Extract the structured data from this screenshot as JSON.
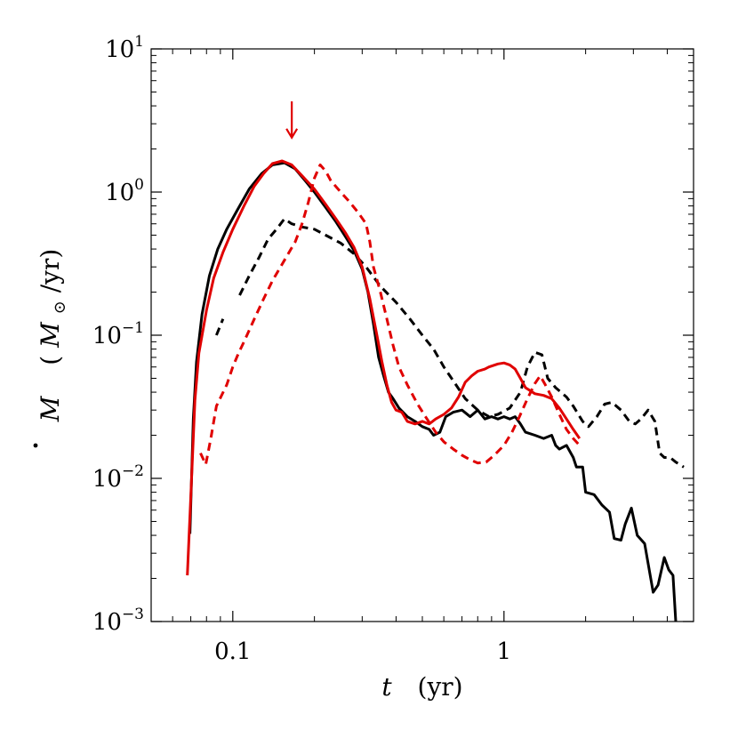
{
  "chart_data": {
    "type": "line",
    "title": "",
    "xlabel": {
      "symbol": "t",
      "unit": "(yr)"
    },
    "ylabel": {
      "symbol": "M",
      "unit_open": "(",
      "unit_sym": "M",
      "unit_sub": "⊙",
      "unit_rest": "/yr)"
    },
    "xscale": "log",
    "yscale": "log",
    "xlim": [
      0.05,
      5.0
    ],
    "ylim": [
      0.001,
      10
    ],
    "grid": false,
    "legend": "none",
    "x_ticks": [
      {
        "value": 0.1,
        "label": "0.1"
      },
      {
        "value": 1,
        "label": "1"
      }
    ],
    "y_ticks": [
      {
        "value": 0.001,
        "base": "10",
        "exp": "−3"
      },
      {
        "value": 0.01,
        "base": "10",
        "exp": "−2"
      },
      {
        "value": 0.1,
        "base": "10",
        "exp": "−1"
      },
      {
        "value": 1,
        "base": "10",
        "exp": "0"
      },
      {
        "value": 10,
        "base": "10",
        "exp": "1"
      }
    ],
    "annotation": {
      "type": "arrow",
      "x": 0.165,
      "y_top": 4.3,
      "y_bottom": 2.4,
      "color": "#e00000"
    },
    "series": [
      {
        "color": "#000000",
        "dash": "solid",
        "points": [
          [
            0.0695,
            0.0041
          ],
          [
            0.0715,
            0.026
          ],
          [
            0.0735,
            0.065
          ],
          [
            0.077,
            0.14
          ],
          [
            0.082,
            0.26
          ],
          [
            0.088,
            0.4
          ],
          [
            0.095,
            0.55
          ],
          [
            0.104,
            0.75
          ],
          [
            0.115,
            1.05
          ],
          [
            0.128,
            1.35
          ],
          [
            0.14,
            1.55
          ],
          [
            0.155,
            1.6
          ],
          [
            0.17,
            1.45
          ],
          [
            0.185,
            1.2
          ],
          [
            0.2,
            1.0
          ],
          [
            0.22,
            0.78
          ],
          [
            0.24,
            0.62
          ],
          [
            0.26,
            0.49
          ],
          [
            0.28,
            0.39
          ],
          [
            0.3,
            0.29
          ],
          [
            0.315,
            0.2
          ],
          [
            0.33,
            0.12
          ],
          [
            0.345,
            0.07
          ],
          [
            0.36,
            0.052
          ],
          [
            0.375,
            0.04
          ],
          [
            0.39,
            0.036
          ],
          [
            0.41,
            0.031
          ],
          [
            0.44,
            0.027
          ],
          [
            0.47,
            0.025
          ],
          [
            0.5,
            0.023
          ],
          [
            0.53,
            0.022
          ],
          [
            0.55,
            0.02
          ],
          [
            0.58,
            0.021
          ],
          [
            0.61,
            0.027
          ],
          [
            0.65,
            0.029
          ],
          [
            0.7,
            0.03
          ],
          [
            0.75,
            0.027
          ],
          [
            0.8,
            0.03
          ],
          [
            0.85,
            0.026
          ],
          [
            0.9,
            0.027
          ],
          [
            0.95,
            0.026
          ],
          [
            1.0,
            0.027
          ],
          [
            1.05,
            0.026
          ],
          [
            1.1,
            0.027
          ],
          [
            1.15,
            0.024
          ],
          [
            1.2,
            0.021
          ],
          [
            1.3,
            0.02
          ],
          [
            1.4,
            0.019
          ],
          [
            1.5,
            0.02
          ],
          [
            1.55,
            0.017
          ],
          [
            1.6,
            0.016
          ],
          [
            1.7,
            0.017
          ],
          [
            1.8,
            0.014
          ],
          [
            1.85,
            0.012
          ],
          [
            1.95,
            0.012
          ],
          [
            2.0,
            0.008
          ],
          [
            2.15,
            0.0077
          ],
          [
            2.3,
            0.0065
          ],
          [
            2.45,
            0.0058
          ],
          [
            2.55,
            0.0038
          ],
          [
            2.7,
            0.0037
          ],
          [
            2.8,
            0.0048
          ],
          [
            2.95,
            0.0062
          ],
          [
            3.1,
            0.004
          ],
          [
            3.3,
            0.0035
          ],
          [
            3.55,
            0.0016
          ],
          [
            3.7,
            0.0018
          ],
          [
            3.9,
            0.0028
          ],
          [
            4.05,
            0.0023
          ],
          [
            4.2,
            0.0021
          ],
          [
            4.3,
            0.001
          ]
        ]
      },
      {
        "color": "#000000",
        "dash": "dashed",
        "points": [
          [
            0.087,
            0.1
          ],
          [
            0.092,
            0.13
          ],
          [
            null,
            null
          ],
          [
            0.106,
            0.19
          ],
          [
            0.115,
            0.26
          ],
          [
            0.125,
            0.35
          ],
          [
            0.135,
            0.47
          ],
          [
            0.145,
            0.55
          ],
          [
            0.155,
            0.65
          ],
          [
            0.165,
            0.6
          ],
          [
            0.18,
            0.57
          ],
          [
            0.2,
            0.55
          ],
          [
            0.22,
            0.5
          ],
          [
            0.25,
            0.44
          ],
          [
            0.28,
            0.37
          ],
          [
            0.31,
            0.3
          ],
          [
            0.35,
            0.22
          ],
          [
            0.4,
            0.17
          ],
          [
            0.45,
            0.13
          ],
          [
            0.5,
            0.1
          ],
          [
            0.55,
            0.08
          ],
          [
            0.6,
            0.06
          ],
          [
            0.66,
            0.046
          ],
          [
            0.72,
            0.036
          ],
          [
            0.8,
            0.03
          ],
          [
            0.88,
            0.027
          ],
          [
            0.95,
            0.028
          ],
          [
            1.05,
            0.031
          ],
          [
            1.15,
            0.04
          ],
          [
            1.22,
            0.06
          ],
          [
            1.3,
            0.076
          ],
          [
            1.38,
            0.073
          ],
          [
            1.45,
            0.05
          ],
          [
            1.55,
            0.043
          ],
          [
            1.7,
            0.037
          ],
          [
            1.8,
            0.032
          ],
          [
            1.95,
            0.025
          ],
          [
            2.05,
            0.023
          ],
          [
            2.2,
            0.027
          ],
          [
            2.35,
            0.033
          ],
          [
            2.5,
            0.034
          ],
          [
            2.7,
            0.03
          ],
          [
            2.9,
            0.025
          ],
          [
            3.05,
            0.024
          ],
          [
            3.2,
            0.026
          ],
          [
            3.4,
            0.03
          ],
          [
            3.6,
            0.025
          ],
          [
            3.75,
            0.015
          ],
          [
            3.9,
            0.014
          ],
          [
            4.1,
            0.014
          ],
          [
            4.3,
            0.013
          ],
          [
            4.6,
            0.012
          ]
        ]
      },
      {
        "color": "#e00000",
        "dash": "solid",
        "points": [
          [
            0.068,
            0.0021
          ],
          [
            0.07,
            0.0075
          ],
          [
            0.0725,
            0.035
          ],
          [
            0.075,
            0.075
          ],
          [
            0.08,
            0.15
          ],
          [
            0.085,
            0.25
          ],
          [
            0.092,
            0.38
          ],
          [
            0.1,
            0.55
          ],
          [
            0.11,
            0.8
          ],
          [
            0.12,
            1.1
          ],
          [
            0.13,
            1.35
          ],
          [
            0.14,
            1.58
          ],
          [
            0.152,
            1.65
          ],
          [
            0.165,
            1.55
          ],
          [
            0.18,
            1.3
          ],
          [
            0.2,
            1.05
          ],
          [
            0.22,
            0.82
          ],
          [
            0.24,
            0.65
          ],
          [
            0.26,
            0.52
          ],
          [
            0.28,
            0.41
          ],
          [
            0.3,
            0.3
          ],
          [
            0.32,
            0.18
          ],
          [
            0.34,
            0.1
          ],
          [
            0.355,
            0.065
          ],
          [
            0.37,
            0.045
          ],
          [
            0.385,
            0.034
          ],
          [
            0.4,
            0.03
          ],
          [
            0.42,
            0.029
          ],
          [
            0.44,
            0.025
          ],
          [
            0.47,
            0.024
          ],
          [
            0.5,
            0.025
          ],
          [
            0.53,
            0.024
          ],
          [
            0.56,
            0.026
          ],
          [
            0.6,
            0.028
          ],
          [
            0.64,
            0.031
          ],
          [
            0.68,
            0.037
          ],
          [
            0.72,
            0.047
          ],
          [
            0.76,
            0.052
          ],
          [
            0.8,
            0.056
          ],
          [
            0.85,
            0.058
          ],
          [
            0.88,
            0.06
          ],
          [
            0.95,
            0.063
          ],
          [
            1.0,
            0.064
          ],
          [
            1.05,
            0.062
          ],
          [
            1.1,
            0.058
          ],
          [
            1.15,
            0.05
          ],
          [
            1.2,
            0.043
          ],
          [
            1.3,
            0.039
          ],
          [
            1.4,
            0.038
          ],
          [
            1.5,
            0.036
          ],
          [
            1.6,
            0.031
          ],
          [
            1.7,
            0.026
          ],
          [
            1.8,
            0.022
          ],
          [
            1.9,
            0.019
          ]
        ]
      },
      {
        "color": "#e00000",
        "dash": "dashed",
        "points": [
          [
            0.076,
            0.015
          ],
          [
            0.0795,
            0.0125
          ],
          [
            0.083,
            0.019
          ],
          [
            0.087,
            0.032
          ],
          [
            0.095,
            0.045
          ],
          [
            0.1,
            0.06
          ],
          [
            0.105,
            0.075
          ],
          [
            0.11,
            0.09
          ],
          [
            0.12,
            0.13
          ],
          [
            0.13,
            0.18
          ],
          [
            0.14,
            0.24
          ],
          [
            0.15,
            0.3
          ],
          [
            0.16,
            0.37
          ],
          [
            0.17,
            0.45
          ],
          [
            0.18,
            0.6
          ],
          [
            0.19,
            0.85
          ],
          [
            0.2,
            1.25
          ],
          [
            0.21,
            1.55
          ],
          [
            0.22,
            1.4
          ],
          [
            0.23,
            1.2
          ],
          [
            0.25,
            1.0
          ],
          [
            0.27,
            0.85
          ],
          [
            0.29,
            0.72
          ],
          [
            0.31,
            0.6
          ],
          [
            0.32,
            0.45
          ],
          [
            0.33,
            0.3
          ],
          [
            0.35,
            0.2
          ],
          [
            0.37,
            0.13
          ],
          [
            0.39,
            0.085
          ],
          [
            0.41,
            0.06
          ],
          [
            0.44,
            0.045
          ],
          [
            0.48,
            0.033
          ],
          [
            0.52,
            0.026
          ],
          [
            0.56,
            0.021
          ],
          [
            0.6,
            0.018
          ],
          [
            0.65,
            0.016
          ],
          [
            0.7,
            0.0145
          ],
          [
            0.75,
            0.0135
          ],
          [
            0.8,
            0.0128
          ],
          [
            0.86,
            0.013
          ],
          [
            0.92,
            0.0145
          ],
          [
            1.0,
            0.017
          ],
          [
            1.07,
            0.021
          ],
          [
            1.14,
            0.027
          ],
          [
            1.22,
            0.036
          ],
          [
            1.3,
            0.046
          ],
          [
            1.36,
            0.052
          ],
          [
            1.42,
            0.045
          ],
          [
            1.5,
            0.037
          ],
          [
            1.6,
            0.028
          ],
          [
            1.7,
            0.022
          ],
          [
            1.8,
            0.019
          ],
          [
            1.9,
            0.017
          ]
        ]
      }
    ]
  }
}
